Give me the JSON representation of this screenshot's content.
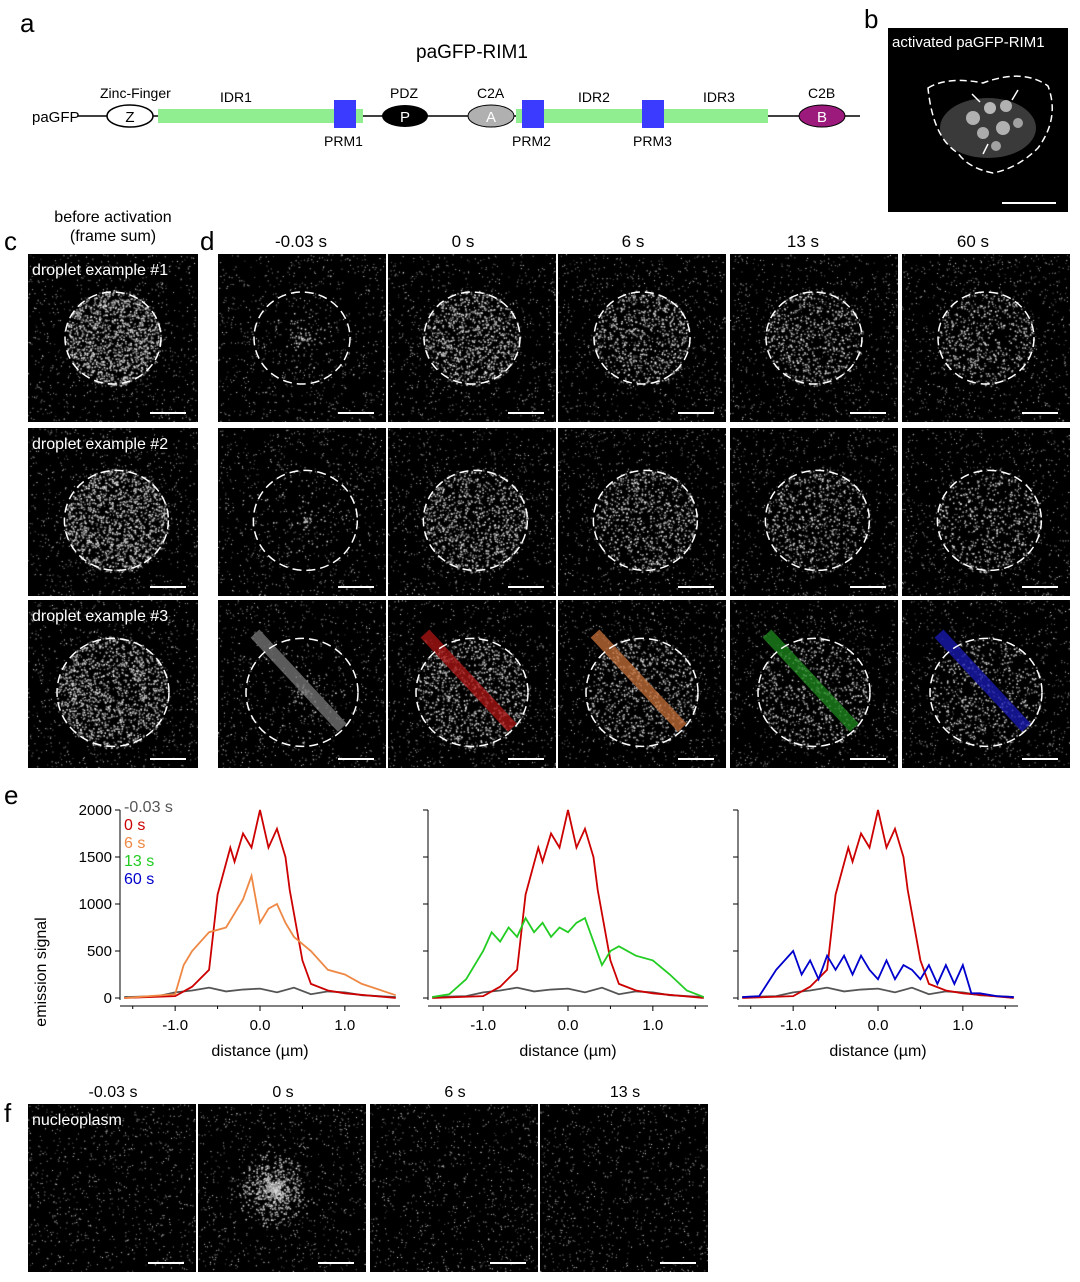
{
  "panels": {
    "a": "a",
    "b": "b",
    "c": "c",
    "d": "d",
    "e": "e",
    "f": "f"
  },
  "construct": {
    "title": "paGFP-RIM1",
    "start_label": "paGFP",
    "domains": {
      "zinc_finger": {
        "name": "Zinc-Finger",
        "letter": "Z"
      },
      "pdz": {
        "name": "PDZ",
        "letter": "P"
      },
      "c2a": {
        "name": "C2A",
        "letter": "A"
      },
      "c2b": {
        "name": "C2B",
        "letter": "B"
      }
    },
    "idr": [
      "IDR1",
      "IDR2",
      "IDR3"
    ],
    "prm": [
      "PRM1",
      "PRM2",
      "PRM3"
    ],
    "colors": {
      "idr": "#90ee90",
      "prm": "#3b3bff",
      "pdz": "#000000",
      "c2a": "#b0b0b0",
      "c2b": "#9b1a7c"
    }
  },
  "panel_b": {
    "label": "activated paGFP-RIM1"
  },
  "panel_c": {
    "header_line1": "before activation",
    "header_line2": "(frame sum)",
    "examples": [
      "droplet example #1",
      "droplet example #2",
      "droplet example #3"
    ]
  },
  "panel_d": {
    "timepoints": [
      "-0.03 s",
      "0 s",
      "6 s",
      "13 s",
      "60 s"
    ],
    "line_colors": [
      "#7a7a7a",
      "#b01515",
      "#c8703a",
      "#1e8a1e",
      "#1a1ab8"
    ]
  },
  "panel_e": {
    "ylabel": "emission signal",
    "xlabel": "distance (µm)",
    "legend": [
      {
        "label": "-0.03 s",
        "color": "#555555"
      },
      {
        "label": "0 s",
        "color": "#cc0000"
      },
      {
        "label": "6 s",
        "color": "#ee8844"
      },
      {
        "label": "13 s",
        "color": "#22cc22"
      },
      {
        "label": "60 s",
        "color": "#0000cc"
      }
    ],
    "y_ticks": [
      "2000",
      "1500",
      "1000",
      "500",
      "0"
    ],
    "x_ticks": [
      "-1.0",
      "0.0",
      "1.0"
    ]
  },
  "panel_f": {
    "label": "nucleoplasm",
    "timepoints": [
      "-0.03 s",
      "0 s",
      "6 s",
      "13 s"
    ]
  },
  "chart_data": [
    {
      "type": "line",
      "xlabel": "distance (µm)",
      "ylabel": "emission signal",
      "xlim": [
        -1.65,
        1.65
      ],
      "ylim": [
        0,
        2000
      ],
      "series": [
        {
          "name": "-0.03 s",
          "color": "#555555",
          "x": [
            -1.6,
            -1.2,
            -1.0,
            -0.8,
            -0.6,
            -0.4,
            -0.2,
            0.0,
            0.2,
            0.4,
            0.6,
            0.8,
            1.0,
            1.2,
            1.6
          ],
          "y": [
            10,
            20,
            60,
            80,
            110,
            70,
            90,
            100,
            60,
            110,
            40,
            70,
            60,
            30,
            10
          ]
        },
        {
          "name": "0 s",
          "color": "#cc0000",
          "x": [
            -1.6,
            -1.0,
            -0.8,
            -0.6,
            -0.5,
            -0.35,
            -0.3,
            -0.2,
            -0.1,
            0.0,
            0.1,
            0.2,
            0.3,
            0.35,
            0.5,
            0.6,
            0.8,
            1.0,
            1.6
          ],
          "y": [
            0,
            20,
            120,
            300,
            1100,
            1600,
            1450,
            1750,
            1600,
            2000,
            1600,
            1800,
            1500,
            1150,
            400,
            150,
            80,
            50,
            0
          ]
        },
        {
          "name": "6 s",
          "color": "#ee8844",
          "x": [
            -1.6,
            -1.0,
            -0.9,
            -0.8,
            -0.6,
            -0.4,
            -0.2,
            -0.1,
            0.0,
            0.1,
            0.2,
            0.3,
            0.4,
            0.6,
            0.8,
            1.0,
            1.2,
            1.6
          ],
          "y": [
            0,
            40,
            350,
            500,
            700,
            750,
            1050,
            1300,
            800,
            950,
            1000,
            800,
            650,
            500,
            300,
            250,
            150,
            30
          ]
        }
      ]
    },
    {
      "type": "line",
      "xlabel": "distance (µm)",
      "xlim": [
        -1.65,
        1.65
      ],
      "ylim": [
        0,
        2000
      ],
      "series": [
        {
          "name": "-0.03 s",
          "color": "#555555",
          "x": [
            -1.6,
            -1.2,
            -1.0,
            -0.8,
            -0.6,
            -0.4,
            -0.2,
            0.0,
            0.2,
            0.4,
            0.6,
            0.8,
            1.0,
            1.2,
            1.6
          ],
          "y": [
            10,
            20,
            60,
            80,
            110,
            70,
            90,
            100,
            60,
            110,
            40,
            70,
            60,
            30,
            10
          ]
        },
        {
          "name": "0 s",
          "color": "#cc0000",
          "x": [
            -1.6,
            -1.0,
            -0.8,
            -0.6,
            -0.5,
            -0.35,
            -0.3,
            -0.2,
            -0.1,
            0.0,
            0.1,
            0.2,
            0.3,
            0.35,
            0.5,
            0.6,
            0.8,
            1.0,
            1.6
          ],
          "y": [
            0,
            20,
            120,
            300,
            1100,
            1600,
            1450,
            1750,
            1600,
            2000,
            1600,
            1800,
            1500,
            1150,
            400,
            150,
            80,
            50,
            0
          ]
        },
        {
          "name": "13 s",
          "color": "#22cc22",
          "x": [
            -1.6,
            -1.4,
            -1.2,
            -1.0,
            -0.9,
            -0.8,
            -0.7,
            -0.6,
            -0.5,
            -0.4,
            -0.3,
            -0.2,
            -0.1,
            0.0,
            0.1,
            0.2,
            0.3,
            0.4,
            0.5,
            0.6,
            0.8,
            1.0,
            1.2,
            1.4,
            1.6
          ],
          "y": [
            10,
            40,
            200,
            500,
            700,
            600,
            750,
            650,
            850,
            700,
            800,
            650,
            750,
            700,
            800,
            850,
            600,
            350,
            500,
            550,
            450,
            400,
            250,
            80,
            10
          ]
        }
      ]
    },
    {
      "type": "line",
      "xlabel": "distance (µm)",
      "xlim": [
        -1.65,
        1.65
      ],
      "ylim": [
        0,
        2000
      ],
      "series": [
        {
          "name": "-0.03 s",
          "color": "#555555",
          "x": [
            -1.6,
            -1.2,
            -1.0,
            -0.8,
            -0.6,
            -0.4,
            -0.2,
            0.0,
            0.2,
            0.4,
            0.6,
            0.8,
            1.0,
            1.2,
            1.6
          ],
          "y": [
            10,
            20,
            60,
            80,
            110,
            70,
            90,
            100,
            60,
            110,
            40,
            70,
            60,
            30,
            10
          ]
        },
        {
          "name": "0 s",
          "color": "#cc0000",
          "x": [
            -1.6,
            -1.0,
            -0.8,
            -0.6,
            -0.5,
            -0.35,
            -0.3,
            -0.2,
            -0.1,
            0.0,
            0.1,
            0.2,
            0.3,
            0.35,
            0.5,
            0.6,
            0.8,
            1.0,
            1.6
          ],
          "y": [
            0,
            20,
            120,
            300,
            1100,
            1600,
            1450,
            1750,
            1600,
            2000,
            1600,
            1800,
            1500,
            1150,
            400,
            150,
            80,
            50,
            0
          ]
        },
        {
          "name": "60 s",
          "color": "#0000cc",
          "x": [
            -1.6,
            -1.4,
            -1.2,
            -1.0,
            -0.9,
            -0.8,
            -0.7,
            -0.6,
            -0.5,
            -0.4,
            -0.3,
            -0.2,
            -0.1,
            0.0,
            0.1,
            0.2,
            0.3,
            0.4,
            0.5,
            0.6,
            0.7,
            0.8,
            0.9,
            1.0,
            1.1,
            1.2,
            1.4,
            1.6
          ],
          "y": [
            10,
            20,
            300,
            500,
            250,
            400,
            200,
            450,
            300,
            450,
            250,
            450,
            300,
            200,
            400,
            200,
            350,
            300,
            200,
            350,
            150,
            350,
            150,
            350,
            50,
            50,
            20,
            10
          ]
        }
      ]
    }
  ]
}
